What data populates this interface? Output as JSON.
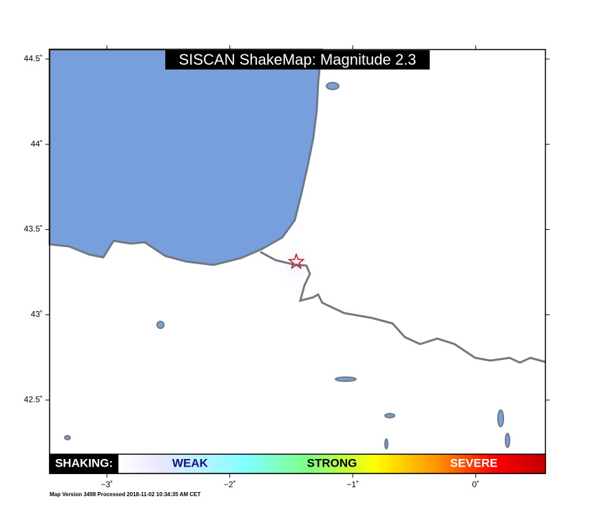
{
  "map": {
    "title": "SISCAN ShakeMap: Magnitude 2.3",
    "lonlim": [
      -3.466,
      0.567
    ],
    "latlim": [
      42.069,
      44.556
    ],
    "xticks": [
      {
        "value": -3,
        "label": "−3˚"
      },
      {
        "value": -2,
        "label": "−2˚"
      },
      {
        "value": -1,
        "label": "−1˚"
      },
      {
        "value": 0,
        "label": "0˚"
      }
    ],
    "yticks": [
      {
        "value": 42.5,
        "label": "42.5˚"
      },
      {
        "value": 43,
        "label": "43˚"
      },
      {
        "value": 43.5,
        "label": "43.5˚"
      },
      {
        "value": 44,
        "label": "44˚"
      },
      {
        "value": 44.5,
        "label": "44.5˚"
      }
    ],
    "epicenter": {
      "lon": -1.46,
      "lat": 43.31
    },
    "legend": {
      "heading": "SHAKING:",
      "labels": [
        "WEAK",
        "STRONG",
        "SEVERE"
      ]
    },
    "footer": "Map Version 3498 Processed 2018-11-02 10:34:35 AM CET"
  }
}
